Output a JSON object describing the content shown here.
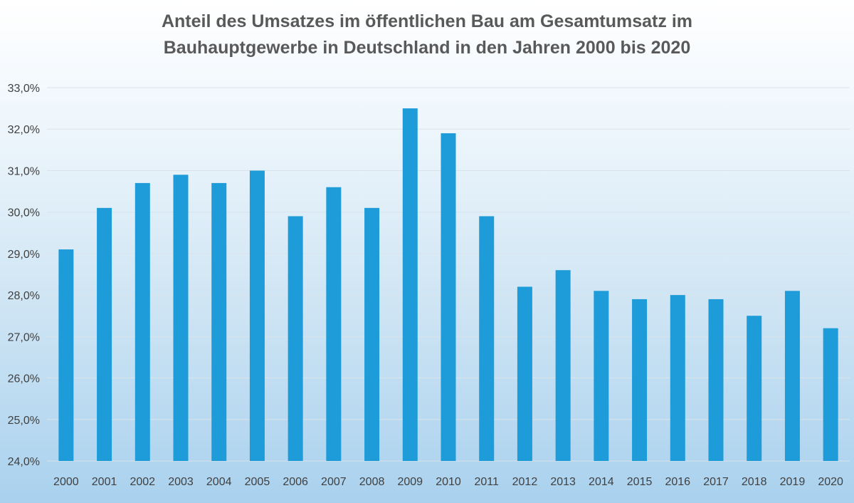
{
  "chart_data": {
    "type": "bar",
    "title_lines": [
      "Anteil des Umsatzes im öffentlichen Bau am Gesamtumsatz im",
      "Bauhauptgewerbe in Deutschland in den Jahren 2000 bis 2020"
    ],
    "xlabel": "",
    "ylabel": "",
    "categories": [
      "2000",
      "2001",
      "2002",
      "2003",
      "2004",
      "2005",
      "2006",
      "2007",
      "2008",
      "2009",
      "2010",
      "2011",
      "2012",
      "2013",
      "2014",
      "2015",
      "2016",
      "2017",
      "2018",
      "2019",
      "2020"
    ],
    "values": [
      29.1,
      30.1,
      30.7,
      30.9,
      30.7,
      31.0,
      29.9,
      30.6,
      30.1,
      32.5,
      31.9,
      29.9,
      28.2,
      28.6,
      28.1,
      27.9,
      28.0,
      27.9,
      27.5,
      28.1,
      27.2
    ],
    "ylim": [
      24,
      33
    ],
    "yticks": [
      "24,0%",
      "25,0%",
      "26,0%",
      "27,0%",
      "28,0%",
      "29,0%",
      "30,0%",
      "31,0%",
      "32,0%",
      "33,0%"
    ],
    "grid": true,
    "legend": "none",
    "colors": {
      "bar": "#1e9cd9",
      "title": "#595959",
      "ticks": "#404040"
    }
  }
}
